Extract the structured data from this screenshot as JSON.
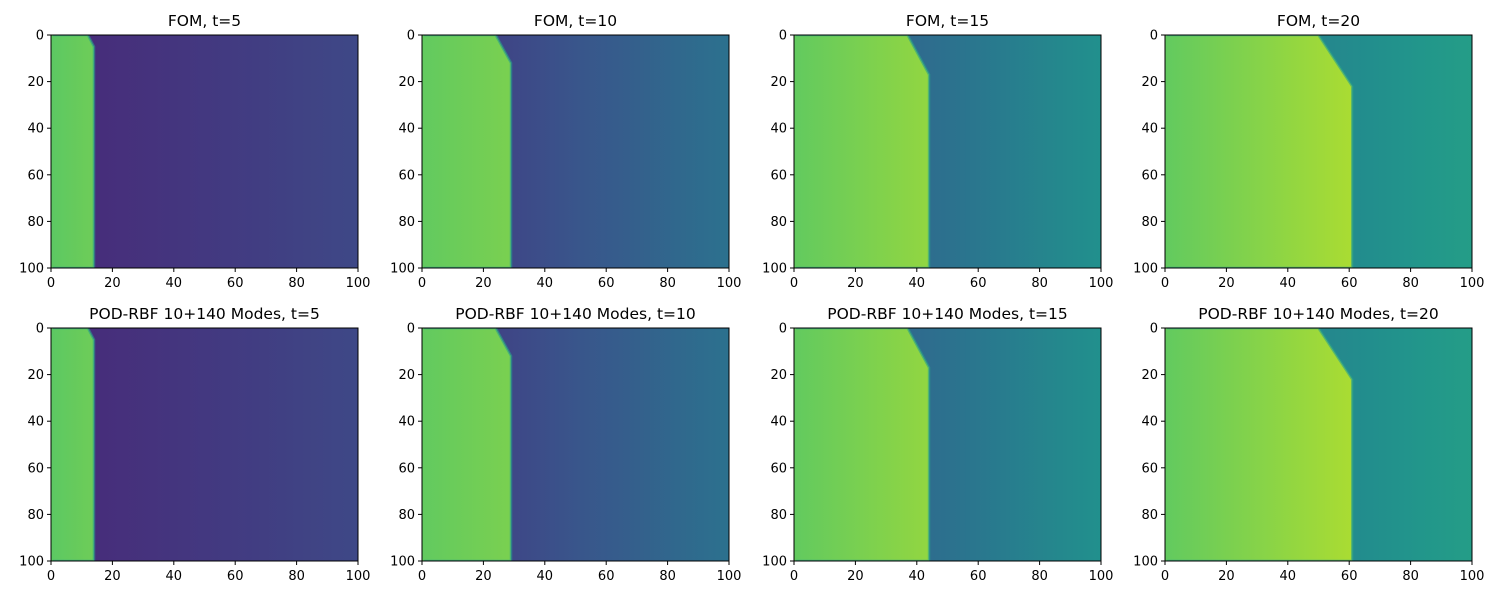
{
  "figure": {
    "colors": {
      "text": "#000000",
      "axes_edge": "#000000",
      "colormap": "viridis"
    }
  },
  "chart_data": [
    {
      "type": "heatmap",
      "title": "FOM, t=5",
      "t": 5,
      "front_x": 14,
      "shock_top_x": 12,
      "shock_top_y": 5,
      "xlim": [
        0,
        100
      ],
      "ylim": [
        100,
        0
      ],
      "xticks": [
        "0",
        "20",
        "40",
        "60",
        "80",
        "100"
      ],
      "yticks": [
        "0",
        "20",
        "40",
        "60",
        "80",
        "100"
      ],
      "value_range": [
        0,
        1
      ],
      "left_value": [
        0.75,
        0.78
      ],
      "right_value": [
        0.12,
        0.22
      ],
      "grid": false
    },
    {
      "type": "heatmap",
      "title": "FOM, t=10",
      "t": 10,
      "front_x": 29,
      "shock_top_x": 24,
      "shock_top_y": 12,
      "xlim": [
        0,
        100
      ],
      "ylim": [
        100,
        0
      ],
      "xticks": [
        "0",
        "20",
        "40",
        "60",
        "80",
        "100"
      ],
      "yticks": [
        "0",
        "20",
        "40",
        "60",
        "80",
        "100"
      ],
      "value_range": [
        0,
        1
      ],
      "left_value": [
        0.76,
        0.8
      ],
      "right_value": [
        0.15,
        0.38
      ],
      "grid": false
    },
    {
      "type": "heatmap",
      "title": "FOM, t=15",
      "t": 15,
      "front_x": 44,
      "shock_top_x": 37,
      "shock_top_y": 17,
      "xlim": [
        0,
        100
      ],
      "ylim": [
        100,
        0
      ],
      "xticks": [
        "0",
        "20",
        "40",
        "60",
        "80",
        "100"
      ],
      "yticks": [
        "0",
        "20",
        "40",
        "60",
        "80",
        "100"
      ],
      "value_range": [
        0,
        1
      ],
      "left_value": [
        0.76,
        0.84
      ],
      "right_value": [
        0.26,
        0.5
      ],
      "grid": false
    },
    {
      "type": "heatmap",
      "title": "FOM, t=20",
      "t": 20,
      "front_x": 61,
      "shock_top_x": 50,
      "shock_top_y": 22,
      "xlim": [
        0,
        100
      ],
      "ylim": [
        100,
        0
      ],
      "xticks": [
        "0",
        "20",
        "40",
        "60",
        "80",
        "100"
      ],
      "yticks": [
        "0",
        "20",
        "40",
        "60",
        "80",
        "100"
      ],
      "value_range": [
        0,
        1
      ],
      "left_value": [
        0.76,
        0.88
      ],
      "right_value": [
        0.36,
        0.56
      ],
      "grid": false
    },
    {
      "type": "heatmap",
      "title": "POD-RBF 10+140 Modes, t=5",
      "t": 5,
      "front_x": 14,
      "shock_top_x": 12,
      "shock_top_y": 5,
      "xlim": [
        0,
        100
      ],
      "ylim": [
        100,
        0
      ],
      "xticks": [
        "0",
        "20",
        "40",
        "60",
        "80",
        "100"
      ],
      "yticks": [
        "0",
        "20",
        "40",
        "60",
        "80",
        "100"
      ],
      "value_range": [
        0,
        1
      ],
      "left_value": [
        0.75,
        0.78
      ],
      "right_value": [
        0.12,
        0.22
      ],
      "grid": false
    },
    {
      "type": "heatmap",
      "title": "POD-RBF 10+140 Modes, t=10",
      "t": 10,
      "front_x": 29,
      "shock_top_x": 24,
      "shock_top_y": 12,
      "xlim": [
        0,
        100
      ],
      "ylim": [
        100,
        0
      ],
      "xticks": [
        "0",
        "20",
        "40",
        "60",
        "80",
        "100"
      ],
      "yticks": [
        "0",
        "20",
        "40",
        "60",
        "80",
        "100"
      ],
      "value_range": [
        0,
        1
      ],
      "left_value": [
        0.76,
        0.8
      ],
      "right_value": [
        0.15,
        0.38
      ],
      "grid": false
    },
    {
      "type": "heatmap",
      "title": "POD-RBF 10+140 Modes, t=15",
      "t": 15,
      "front_x": 44,
      "shock_top_x": 37,
      "shock_top_y": 17,
      "xlim": [
        0,
        100
      ],
      "ylim": [
        100,
        0
      ],
      "xticks": [
        "0",
        "20",
        "40",
        "60",
        "80",
        "100"
      ],
      "yticks": [
        "0",
        "20",
        "40",
        "60",
        "80",
        "100"
      ],
      "value_range": [
        0,
        1
      ],
      "left_value": [
        0.76,
        0.84
      ],
      "right_value": [
        0.26,
        0.5
      ],
      "grid": false
    },
    {
      "type": "heatmap",
      "title": "POD-RBF 10+140 Modes, t=20",
      "t": 20,
      "front_x": 61,
      "shock_top_x": 50,
      "shock_top_y": 22,
      "xlim": [
        0,
        100
      ],
      "ylim": [
        100,
        0
      ],
      "xticks": [
        "0",
        "20",
        "40",
        "60",
        "80",
        "100"
      ],
      "yticks": [
        "0",
        "20",
        "40",
        "60",
        "80",
        "100"
      ],
      "value_range": [
        0,
        1
      ],
      "left_value": [
        0.76,
        0.88
      ],
      "right_value": [
        0.36,
        0.56
      ],
      "grid": false
    }
  ]
}
